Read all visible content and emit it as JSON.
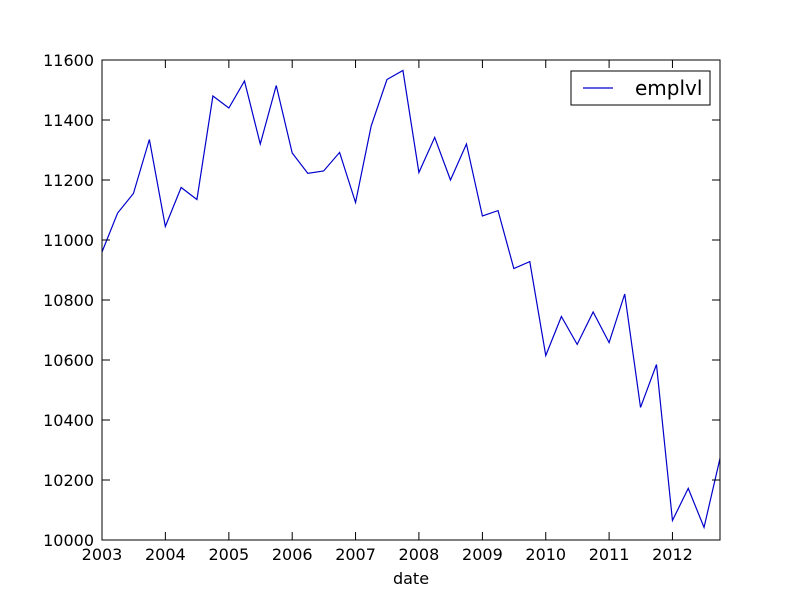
{
  "chart_data": {
    "type": "line",
    "title": "",
    "xlabel": "date",
    "ylabel": "",
    "xlim": [
      "2003-01-01",
      "2012-10-01"
    ],
    "ylim": [
      10000,
      11600
    ],
    "x_ticks": [
      "2003",
      "2004",
      "2005",
      "2006",
      "2007",
      "2008",
      "2009",
      "2010",
      "2011",
      "2012"
    ],
    "y_ticks": [
      10000,
      10200,
      10400,
      10600,
      10800,
      11000,
      11200,
      11400,
      11600
    ],
    "grid": false,
    "legend": {
      "placement": "top-right"
    },
    "series": [
      {
        "name": "emplvl",
        "color": "#0000cc",
        "points": [
          [
            "2003-01-01",
            10960
          ],
          [
            "2003-04-01",
            11090
          ],
          [
            "2003-07-01",
            11155
          ],
          [
            "2003-10-01",
            11335
          ],
          [
            "2004-01-01",
            11045
          ],
          [
            "2004-04-01",
            11175
          ],
          [
            "2004-07-01",
            11135
          ],
          [
            "2004-10-01",
            11480
          ],
          [
            "2005-01-01",
            11440
          ],
          [
            "2005-04-01",
            11530
          ],
          [
            "2005-07-01",
            11320
          ],
          [
            "2005-10-01",
            11515
          ],
          [
            "2006-01-01",
            11290
          ],
          [
            "2006-04-01",
            11222
          ],
          [
            "2006-07-01",
            11230
          ],
          [
            "2006-10-01",
            11292
          ],
          [
            "2007-01-01",
            11125
          ],
          [
            "2007-04-01",
            11380
          ],
          [
            "2007-07-01",
            11535
          ],
          [
            "2007-10-01",
            11565
          ],
          [
            "2008-01-01",
            11225
          ],
          [
            "2008-04-01",
            11342
          ],
          [
            "2008-07-01",
            11200
          ],
          [
            "2008-10-01",
            11320
          ],
          [
            "2009-01-01",
            11080
          ],
          [
            "2009-04-01",
            11098
          ],
          [
            "2009-07-01",
            10905
          ],
          [
            "2009-10-01",
            10928
          ],
          [
            "2010-01-01",
            10615
          ],
          [
            "2010-04-01",
            10745
          ],
          [
            "2010-07-01",
            10652
          ],
          [
            "2010-10-01",
            10760
          ],
          [
            "2011-01-01",
            10658
          ],
          [
            "2011-04-01",
            10820
          ],
          [
            "2011-07-01",
            10442
          ],
          [
            "2011-10-01",
            10585
          ],
          [
            "2012-01-01",
            10065
          ],
          [
            "2012-04-01",
            10172
          ],
          [
            "2012-07-01",
            10042
          ],
          [
            "2012-10-01",
            10272
          ]
        ]
      }
    ]
  }
}
